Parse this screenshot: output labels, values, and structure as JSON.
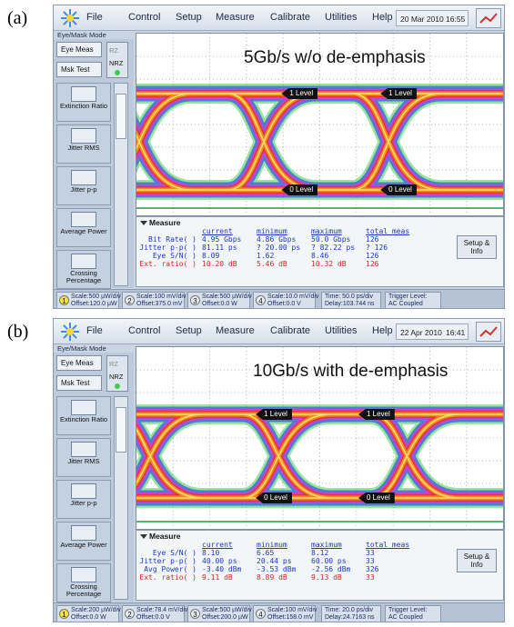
{
  "panels": [
    {
      "label": "(a)",
      "menu": [
        "File",
        "Control",
        "Setup",
        "Measure",
        "Calibrate",
        "Utilities",
        "Help"
      ],
      "date": "20 Mar 2010",
      "time": "16:55",
      "mode": "Eye/Mask Mode",
      "side_buttons": [
        "Eye Meas",
        "Msk Test"
      ],
      "format": [
        "RZ",
        "NRZ"
      ],
      "tools": [
        "Extinction Ratio",
        "Jitter RMS",
        "Jitter p-p",
        "Average Power",
        "Crossing Percentage"
      ],
      "display_title": "5Gb/s w/o de-emphasis",
      "levels": [
        "1 Level",
        "1 Level",
        "0 Level",
        "0 Level"
      ],
      "measure": {
        "tab": "Measure",
        "headers": [
          "current",
          "minimum",
          "maximum",
          "total meas"
        ],
        "rows": [
          {
            "name": "Bit Rate( )",
            "cells": [
              "4.95 Gbps",
              "4.86 Gbps",
              "50.0 Gbps",
              "126"
            ]
          },
          {
            "name": "Jitter p-p( )",
            "cells": [
              "81.11 ps",
              "? 20.00 ps",
              "? 82.22 ps",
              "? 126"
            ]
          },
          {
            "name": "Eye S/N( )",
            "cells": [
              "8.09",
              "1.62",
              "8.46",
              "126"
            ]
          },
          {
            "name": "Ext. ratio( )",
            "cells": [
              "10.20 dB",
              "5.46 dB",
              "10.32 dB",
              "126"
            ]
          }
        ]
      },
      "setup": "Setup & Info",
      "channels": [
        {
          "number": "1",
          "scale": "Scale:500 µW/div",
          "offset": "Offset:120.0 µW"
        },
        {
          "number": "2",
          "scale": "Scale:100 mV/div",
          "offset": "Offset:375.0 mV"
        },
        {
          "number": "3",
          "scale": "Scale:500 µW/div",
          "offset": "Offset:0.0 W"
        },
        {
          "number": "4",
          "scale": "Scale:10.0 mV/div",
          "offset": "Offset:0.0 V"
        }
      ],
      "timebase": {
        "scale": "Time: 50.0 ps/div",
        "delay": "Delay:103.744 ns"
      },
      "trigger": {
        "level": "Trigger Level:",
        "coupling": "AC Coupled"
      }
    },
    {
      "label": "(b)",
      "menu": [
        "File",
        "Control",
        "Setup",
        "Measure",
        "Calibrate",
        "Utilities",
        "Help"
      ],
      "date": "22 Apr 2010",
      "time": "16:41",
      "mode": "Eye/Mask Mode",
      "side_buttons": [
        "Eye Meas",
        "Msk Test"
      ],
      "format": [
        "RZ",
        "NRZ"
      ],
      "tools": [
        "Extinction Ratio",
        "Jitter RMS",
        "Jitter p-p",
        "Average Power",
        "Crossing Percentage"
      ],
      "display_title": "10Gb/s with de-emphasis",
      "levels": [
        "1 Level",
        "1 Level",
        "0 Level",
        "0 Level"
      ],
      "measure": {
        "tab": "Measure",
        "headers": [
          "current",
          "minimum",
          "maximum",
          "total meas"
        ],
        "rows": [
          {
            "name": "Eye S/N( )",
            "cells": [
              "8.10",
              "6.65",
              "8.12",
              "33"
            ]
          },
          {
            "name": "Jitter p-p( )",
            "cells": [
              "40.00 ps",
              "20.44 ps",
              "60.00 ps",
              "33"
            ]
          },
          {
            "name": "Avg Power( )",
            "cells": [
              "-3.40 dBm",
              "-3.53 dBm",
              "-2.56 dBm",
              "326"
            ]
          },
          {
            "name": "Ext. ratio( )",
            "cells": [
              "9.11 dB",
              "8.89 dB",
              "9.13 dB",
              "33"
            ]
          }
        ]
      },
      "setup": "Setup & Info",
      "channels": [
        {
          "number": "1",
          "scale": "Scale:200 µW/div",
          "offset": "Offset:0.0 W"
        },
        {
          "number": "2",
          "scale": "Scale:78.4 mV/div",
          "offset": "Offset:0.0 V"
        },
        {
          "number": "3",
          "scale": "Scale:500 µW/div",
          "offset": "Offset:200.0 µW"
        },
        {
          "number": "4",
          "scale": "Scale:100 mV/div",
          "offset": "Offset:158.0 mV"
        }
      ],
      "timebase": {
        "scale": "Time: 20.0 ps/div",
        "delay": "Delay:24.7163 ns"
      },
      "trigger": {
        "level": "Trigger Level:",
        "coupling": "AC Coupled"
      }
    }
  ]
}
